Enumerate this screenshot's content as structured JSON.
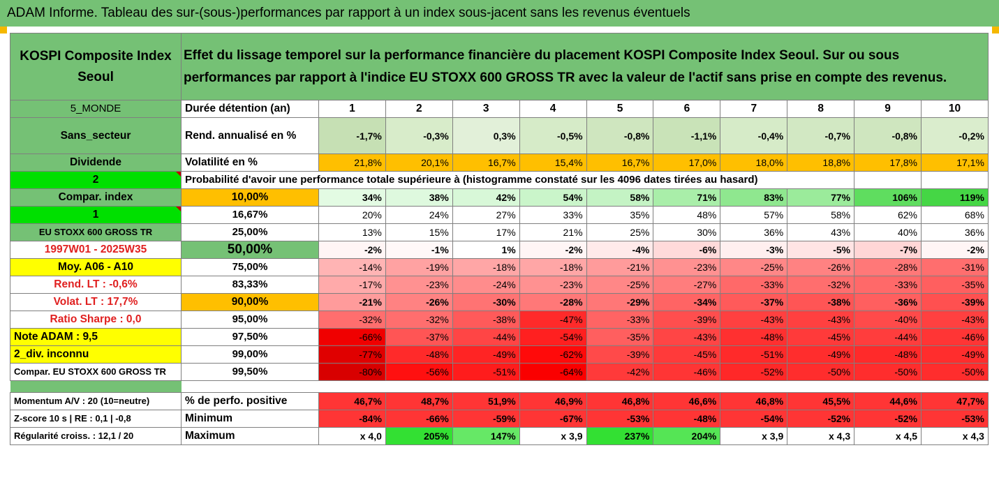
{
  "title": "ADAM Informe. Tableau des sur-(sous-)performances par rapport à un index sous-jacent sans les revenus éventuels",
  "header": {
    "left": "KOSPI Composite Index Seoul",
    "right": "Effet du lissage temporel sur la performance financière du placement KOSPI Composite Index Seoul. Sur ou sous performances par rapport à l'indice EU STOXX 600 GROSS TR avec la valeur de l'actif sans prise en compte des revenus."
  },
  "years_row": {
    "left": "5_MONDE",
    "label": "Durée détention (an)",
    "years": [
      "1",
      "2",
      "3",
      "4",
      "5",
      "6",
      "7",
      "8",
      "9",
      "10"
    ]
  },
  "rend_row": {
    "left": "Sans_secteur",
    "label": "Rend. annualisé en %",
    "values": [
      "-1,7%",
      "-0,3%",
      "0,3%",
      "-0,5%",
      "-0,8%",
      "-1,1%",
      "-0,4%",
      "-0,7%",
      "-0,8%",
      "-0,2%"
    ]
  },
  "vol_row": {
    "left": "Dividende",
    "label": "Volatilité en %",
    "values": [
      "21,8%",
      "20,1%",
      "16,7%",
      "15,4%",
      "16,7%",
      "17,0%",
      "18,0%",
      "18,8%",
      "17,8%",
      "17,1%"
    ]
  },
  "prob_row": {
    "left": "2",
    "label": "Probabilité d'avoir une performance totale supérieure à (histogramme constaté sur les 4096 dates tirées au hasard)"
  },
  "prob_rows": [
    {
      "left": "Compar. index",
      "pct": "10,00%",
      "values": [
        "34%",
        "38%",
        "42%",
        "54%",
        "58%",
        "71%",
        "83%",
        "77%",
        "106%",
        "119%"
      ]
    },
    {
      "left": "1",
      "pct": "16,67%",
      "values": [
        "20%",
        "24%",
        "27%",
        "33%",
        "35%",
        "48%",
        "57%",
        "58%",
        "62%",
        "68%"
      ]
    },
    {
      "left": "EU STOXX 600 GROSS TR",
      "pct": "25,00%",
      "values": [
        "13%",
        "15%",
        "17%",
        "21%",
        "25%",
        "30%",
        "36%",
        "43%",
        "40%",
        "36%"
      ]
    },
    {
      "left": "1997W01 - 2025W35",
      "pct": "50,00%",
      "values": [
        "-2%",
        "-1%",
        "1%",
        "-2%",
        "-4%",
        "-6%",
        "-3%",
        "-5%",
        "-7%",
        "-2%"
      ]
    },
    {
      "left": "Moy. A06 - A10",
      "pct": "75,00%",
      "values": [
        "-14%",
        "-19%",
        "-18%",
        "-18%",
        "-21%",
        "-23%",
        "-25%",
        "-26%",
        "-28%",
        "-31%"
      ]
    },
    {
      "left": "Rend. LT :   -0,6%",
      "pct": "83,33%",
      "values": [
        "-17%",
        "-23%",
        "-24%",
        "-23%",
        "-25%",
        "-27%",
        "-33%",
        "-32%",
        "-33%",
        "-35%"
      ]
    },
    {
      "left": "Volat. LT :   17,7%",
      "pct": "90,00%",
      "values": [
        "-21%",
        "-26%",
        "-30%",
        "-28%",
        "-29%",
        "-34%",
        "-37%",
        "-38%",
        "-36%",
        "-39%"
      ]
    },
    {
      "left": "Ratio Sharpe :   0,0",
      "pct": "95,00%",
      "values": [
        "-32%",
        "-32%",
        "-38%",
        "-47%",
        "-33%",
        "-39%",
        "-43%",
        "-43%",
        "-40%",
        "-43%"
      ]
    },
    {
      "left": "Note ADAM : 9,5",
      "pct": "97,50%",
      "values": [
        "-66%",
        "-37%",
        "-44%",
        "-54%",
        "-35%",
        "-43%",
        "-48%",
        "-45%",
        "-44%",
        "-46%"
      ]
    },
    {
      "left": "2_div. inconnu",
      "pct": "99,00%",
      "values": [
        "-77%",
        "-48%",
        "-49%",
        "-62%",
        "-39%",
        "-45%",
        "-51%",
        "-49%",
        "-48%",
        "-49%"
      ]
    },
    {
      "left": "Compar. EU STOXX 600 GROSS TR",
      "pct": "99,50%",
      "values": [
        "-80%",
        "-56%",
        "-51%",
        "-64%",
        "-42%",
        "-46%",
        "-52%",
        "-50%",
        "-50%",
        "-50%"
      ]
    }
  ],
  "bottom_rows": [
    {
      "left": "Momentum A/V : 20 (10=neutre)",
      "label": "% de perfo. positive",
      "values": [
        "46,7%",
        "48,7%",
        "51,9%",
        "46,9%",
        "46,8%",
        "46,6%",
        "46,8%",
        "45,5%",
        "44,6%",
        "47,7%"
      ]
    },
    {
      "left": "Z-score 10 s  |  RE : 0,1  |  -0,8",
      "label": "Minimum",
      "values": [
        "-84%",
        "-66%",
        "-59%",
        "-67%",
        "-53%",
        "-48%",
        "-54%",
        "-52%",
        "-52%",
        "-53%"
      ]
    },
    {
      "left": "Régularité croiss. : 12,1 / 20",
      "label": "Maximum",
      "values": [
        "x 4,0",
        "205%",
        "147%",
        "x 3,9",
        "237%",
        "204%",
        "x 3,9",
        "x 4,3",
        "x 4,5",
        "x 4,3"
      ]
    }
  ],
  "colors": {
    "header_green": "#75c175",
    "orange": "#ffbf00",
    "lime": "#00e000",
    "yellow": "#ffff00",
    "red_text": "#e02020"
  },
  "cell_colors": {
    "rend": [
      "#c6e0b4",
      "#d8ecca",
      "#e2f0d9",
      "#d6ebc8",
      "#cfe6bf",
      "#c9e3b8",
      "#d6ebc8",
      "#d2e8c3",
      "#cfe6bf",
      "#daedcd"
    ],
    "vol": [
      "#ffbf00",
      "#ffbf00",
      "#ffbf00",
      "#ffbf00",
      "#ffbf00",
      "#ffbf00",
      "#ffbf00",
      "#ffbf00",
      "#ffbf00",
      "#ffbf00"
    ],
    "prob": [
      [
        "#e3fbe3",
        "#def9de",
        "#d8f8d8",
        "#caf5ca",
        "#c4f3c4",
        "#a9eea9",
        "#8fe78f",
        "#9beb9b",
        "#5fdd5f",
        "#45d645"
      ],
      [
        "#ffffff",
        "#ffffff",
        "#ffffff",
        "#ffffff",
        "#ffffff",
        "#ffffff",
        "#ffffff",
        "#ffffff",
        "#ffffff",
        "#ffffff"
      ],
      [
        "#ffffff",
        "#ffffff",
        "#ffffff",
        "#ffffff",
        "#ffffff",
        "#ffffff",
        "#ffffff",
        "#ffffff",
        "#ffffff",
        "#ffffff"
      ],
      [
        "#fff5f5",
        "#fff8f8",
        "#ffffff",
        "#fff5f5",
        "#ffeaea",
        "#ffdada",
        "#ffefef",
        "#ffe4e4",
        "#ffd6d6",
        "#fff5f5"
      ],
      [
        "#ffb4b4",
        "#ffa2a2",
        "#ffa6a6",
        "#ffa6a6",
        "#ff9b9b",
        "#ff9191",
        "#ff8787",
        "#ff8282",
        "#ff7878",
        "#ff6e6e"
      ],
      [
        "#ffaaaa",
        "#ff9191",
        "#ff8c8c",
        "#ff9191",
        "#ff8787",
        "#ff7d7d",
        "#ff6969",
        "#ff6e6e",
        "#ff6969",
        "#ff5f5f"
      ],
      [
        "#ff9b9b",
        "#ff8282",
        "#ff7373",
        "#ff7878",
        "#ff7777",
        "#ff6464",
        "#ff5a5a",
        "#ff5555",
        "#ff5f5f",
        "#ff5050"
      ],
      [
        "#ff6e6e",
        "#ff6e6e",
        "#ff5a5a",
        "#ff2a2a",
        "#ff6464",
        "#ff4e4e",
        "#ff4040",
        "#ff4040",
        "#ff4a4a",
        "#ff4040"
      ],
      [
        "#f00000",
        "#ff5555",
        "#ff4545",
        "#ff2020",
        "#ff5f5f",
        "#ff4545",
        "#ff3030",
        "#ff3a3a",
        "#ff3d3d",
        "#ff3535"
      ],
      [
        "#e00000",
        "#ff2a2a",
        "#ff2424",
        "#ff0a0a",
        "#ff4a4a",
        "#ff3a3a",
        "#ff2a2a",
        "#ff2d2d",
        "#ff2a2a",
        "#ff2d2d"
      ],
      [
        "#d80000",
        "#ff1010",
        "#ff1c1c",
        "#fa0000",
        "#ff3a3a",
        "#ff3535",
        "#ff2828",
        "#ff2d2d",
        "#ff2d2d",
        "#ff2d2d"
      ]
    ],
    "momentum": [
      "#ff3535",
      "#ff3535",
      "#ff3535",
      "#ff3535",
      "#ff3535",
      "#ff3535",
      "#ff3535",
      "#ff3535",
      "#ff3535",
      "#ff3535"
    ],
    "minimum": [
      "#ff3535",
      "#ff3535",
      "#ff3535",
      "#ff3535",
      "#ff3535",
      "#ff3535",
      "#ff3535",
      "#ff3535",
      "#ff3535",
      "#ff3535"
    ],
    "maximum": [
      "#ffffff",
      "#33e033",
      "#66e866",
      "#ffffff",
      "#33e033",
      "#55e555",
      "#ffffff",
      "#ffffff",
      "#ffffff",
      "#ffffff"
    ]
  }
}
